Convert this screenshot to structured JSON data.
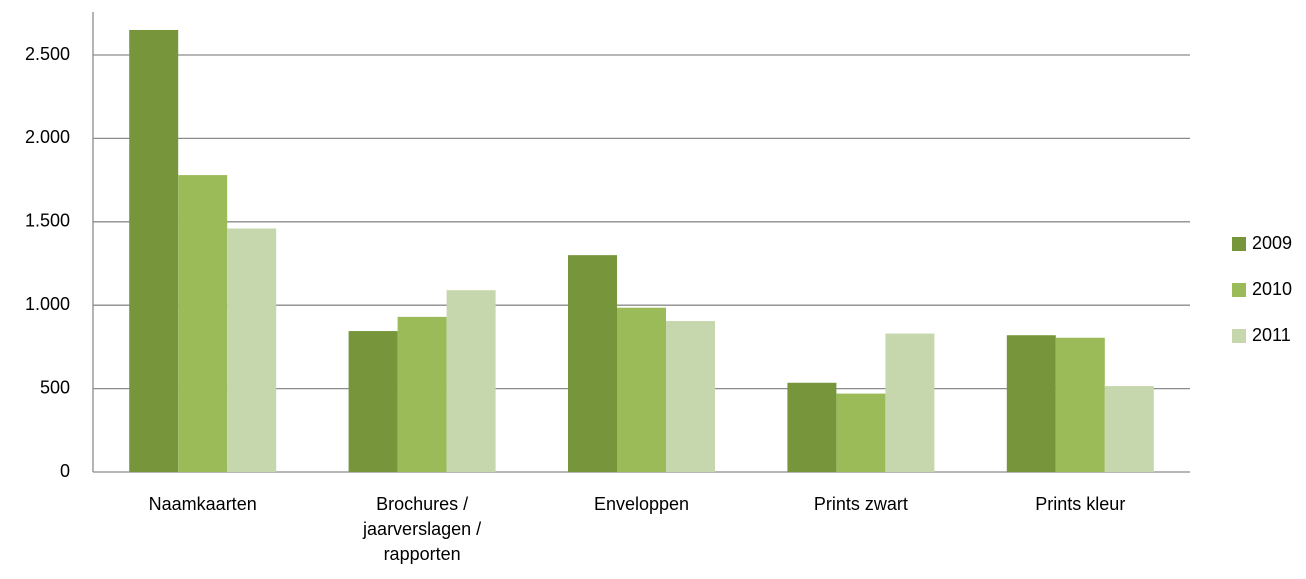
{
  "chart_data": {
    "type": "bar",
    "categories": [
      "Naamkaarten",
      "Brochures / jaarverslagen / rapporten",
      "Enveloppen",
      "Prints zwart",
      "Prints kleur"
    ],
    "series": [
      {
        "name": "2009",
        "color": "#77963b",
        "values": [
          2650,
          845,
          1300,
          535,
          820
        ]
      },
      {
        "name": "2010",
        "color": "#9bbb59",
        "values": [
          1780,
          930,
          985,
          470,
          805
        ]
      },
      {
        "name": "2011",
        "color": "#c6d7ad",
        "values": [
          1460,
          1090,
          905,
          830,
          515
        ]
      }
    ],
    "ylim": [
      0,
      2750
    ],
    "yticks": [
      0,
      500,
      {
        "value": 1000,
        "label": "1.000"
      },
      {
        "value": 1500,
        "label": "1.500"
      },
      {
        "value": 2000,
        "label": "2.000"
      },
      {
        "value": 2500,
        "label": "2.500"
      }
    ],
    "grid": true,
    "legend": "right"
  }
}
